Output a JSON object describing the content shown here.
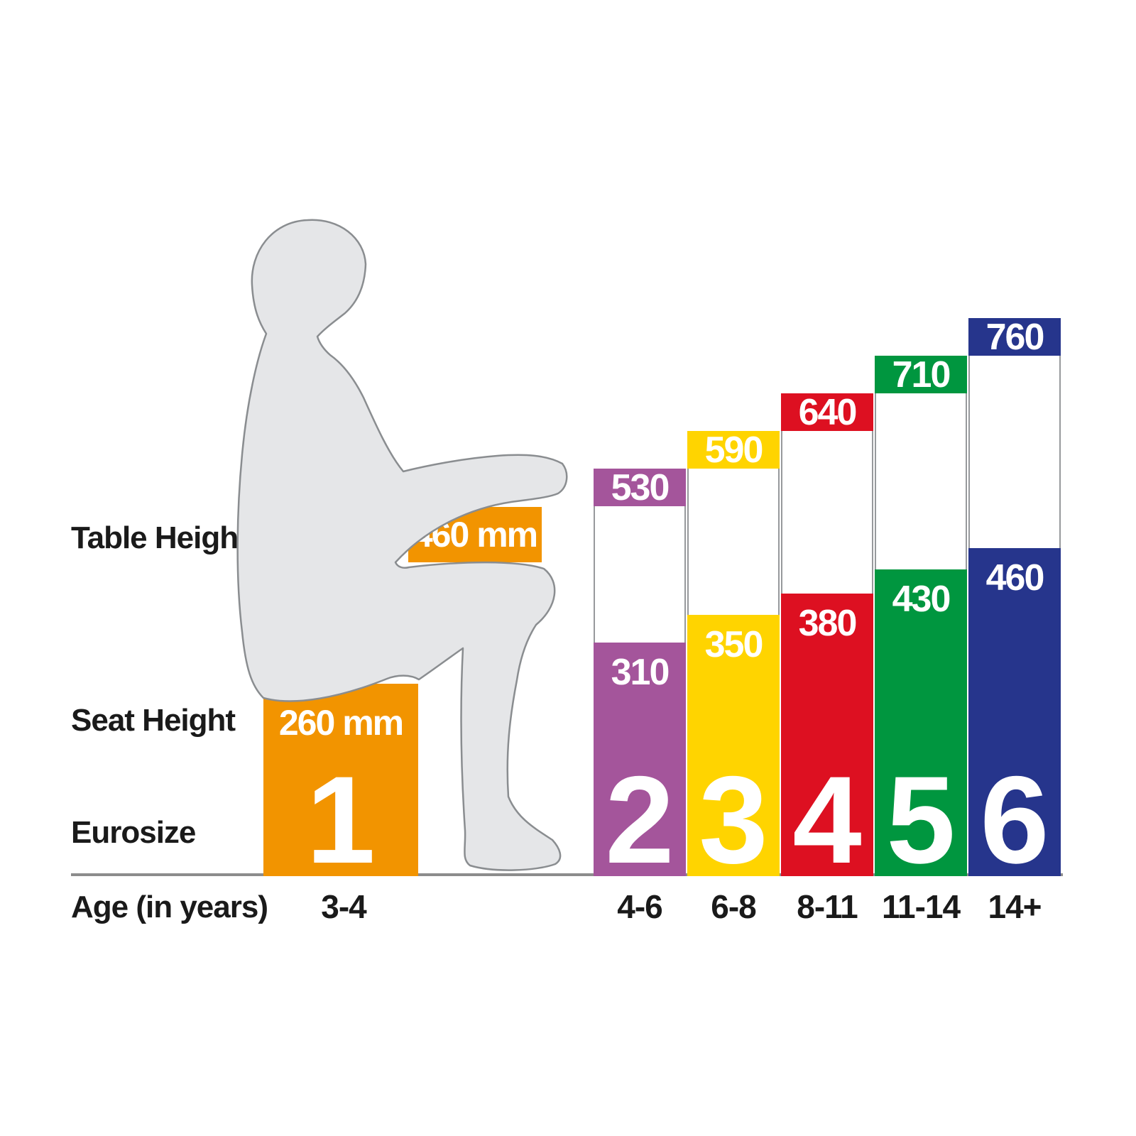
{
  "chart_data": {
    "type": "bar",
    "title": "",
    "unit": "mm",
    "categories_eurosize": [
      "1",
      "2",
      "3",
      "4",
      "5",
      "6"
    ],
    "age_in_years": [
      "3-4",
      "4-6",
      "6-8",
      "8-11",
      "11-14",
      "14+"
    ],
    "series": [
      {
        "name": "Table Height (mm)",
        "values": [
          460,
          530,
          590,
          640,
          710,
          760
        ]
      },
      {
        "name": "Seat Height (mm)",
        "values": [
          260,
          310,
          350,
          380,
          430,
          460
        ]
      }
    ],
    "bar_colors": [
      "#f29400",
      "#a4559b",
      "#ffd400",
      "#dd1021",
      "#00963f",
      "#26358c"
    ],
    "grid": false,
    "legend_position": "row-labels-left"
  },
  "labels": {
    "table_height": "Table Height",
    "seat_height": "Seat Height",
    "eurosize": "Eurosize",
    "age": "Age (in years)"
  },
  "reference": {
    "table_value": "460 mm",
    "seat_value": "260 mm",
    "eurosize": "1",
    "age": "3-4",
    "color": "#f29400"
  },
  "bars": [
    {
      "eurosize": "2",
      "table": "530",
      "seat": "310",
      "age": "4-6",
      "color": "#a4559b"
    },
    {
      "eurosize": "3",
      "table": "590",
      "seat": "350",
      "age": "6-8",
      "color": "#ffd400"
    },
    {
      "eurosize": "4",
      "table": "640",
      "seat": "380",
      "age": "8-11",
      "color": "#dd1021"
    },
    {
      "eurosize": "5",
      "table": "710",
      "seat": "430",
      "age": "11-14",
      "color": "#00963f"
    },
    {
      "eurosize": "6",
      "table": "760",
      "seat": "460",
      "age": "14+",
      "color": "#26358c"
    }
  ]
}
